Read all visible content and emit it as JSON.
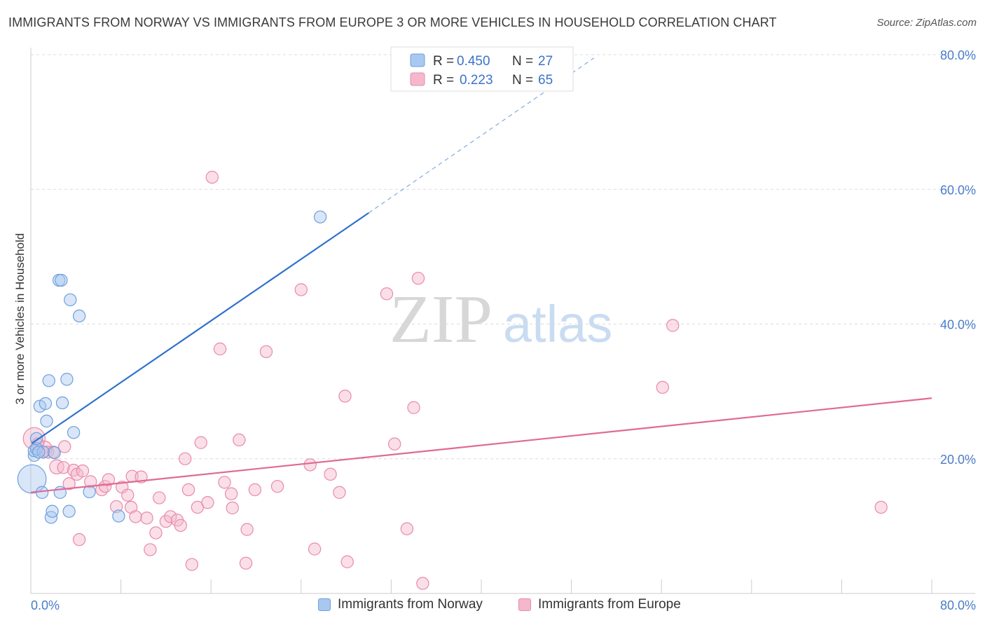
{
  "header": {
    "title": "IMMIGRANTS FROM NORWAY VS IMMIGRANTS FROM EUROPE 3 OR MORE VEHICLES IN HOUSEHOLD CORRELATION CHART",
    "source": "Source: ZipAtlas.com"
  },
  "watermark": {
    "zip": "ZIP",
    "atlas": "atlas"
  },
  "legend_top": {
    "rows": [
      {
        "r_label": "R =",
        "r_value": "0.450",
        "n_label": "N =",
        "n_value": "27"
      },
      {
        "r_label": "R =",
        "r_value": "0.223",
        "n_label": "N =",
        "n_value": "65"
      }
    ]
  },
  "legend_bottom": {
    "norway": "Immigrants from Norway",
    "europe": "Immigrants from Europe"
  },
  "colors": {
    "norway_fill": "#a9c8f0",
    "norway_stroke": "#6f9fde",
    "norway_line": "#2f72cc",
    "europe_fill": "#f5b8cb",
    "europe_stroke": "#e98aaa",
    "europe_line": "#e06a95",
    "tick_label": "#4a7cc9"
  },
  "chart_data": {
    "type": "scatter",
    "title": "IMMIGRANTS FROM NORWAY VS IMMIGRANTS FROM EUROPE 3 OR MORE VEHICLES IN HOUSEHOLD CORRELATION CHART",
    "xlabel": "",
    "ylabel": "3 or more Vehicles in Household",
    "xlim": [
      0,
      80
    ],
    "ylim": [
      0,
      80
    ],
    "x_tick_labels": [
      "0.0%",
      "80.0%"
    ],
    "y_ticks": [
      20,
      40,
      60,
      80
    ],
    "y_tick_labels": [
      "20.0%",
      "40.0%",
      "60.0%",
      "80.0%"
    ],
    "grid": true,
    "legend": "top-center",
    "series": [
      {
        "name": "Immigrants from Norway",
        "R": 0.45,
        "N": 27,
        "trend": {
          "x0": 0.1,
          "y0": 22.3,
          "x1": 30.0,
          "y1": 56.5,
          "dash_to_x": 50.0,
          "dash_to_y": 79.5
        },
        "points": [
          [
            0.1,
            17.0,
            26
          ],
          [
            0.3,
            20.5,
            11
          ],
          [
            0.3,
            21.2,
            11
          ],
          [
            0.5,
            21.5,
            11
          ],
          [
            0.5,
            23.0,
            11
          ],
          [
            0.8,
            27.8,
            11
          ],
          [
            1.0,
            15.0,
            11
          ],
          [
            1.1,
            21.0,
            11
          ],
          [
            1.3,
            28.2,
            11
          ],
          [
            1.4,
            25.6,
            11
          ],
          [
            1.6,
            31.6,
            11
          ],
          [
            1.8,
            11.3,
            11
          ],
          [
            1.9,
            12.2,
            11
          ],
          [
            2.1,
            20.9,
            11
          ],
          [
            2.5,
            46.5,
            11
          ],
          [
            2.6,
            15.0,
            11
          ],
          [
            2.8,
            28.3,
            11
          ],
          [
            2.7,
            46.5,
            11
          ],
          [
            3.2,
            31.8,
            11
          ],
          [
            3.4,
            12.2,
            11
          ],
          [
            3.5,
            43.6,
            11
          ],
          [
            3.8,
            23.9,
            11
          ],
          [
            4.3,
            41.2,
            11
          ],
          [
            5.2,
            15.1,
            11
          ],
          [
            7.8,
            11.5,
            11
          ],
          [
            25.7,
            55.9,
            11
          ],
          [
            0.7,
            21.0,
            11
          ]
        ]
      },
      {
        "name": "Immigrants from Europe",
        "R": 0.223,
        "N": 65,
        "trend": {
          "x0": 0.0,
          "y0": 15.0,
          "x1": 80.0,
          "y1": 29.0
        },
        "points": [
          [
            0.3,
            23.0,
            20
          ],
          [
            1.2,
            21.5,
            14
          ],
          [
            1.5,
            21.0,
            11
          ],
          [
            2.0,
            21.0,
            11
          ],
          [
            2.3,
            18.8,
            13
          ],
          [
            2.9,
            18.7,
            11
          ],
          [
            3.4,
            16.3,
            11
          ],
          [
            3.8,
            18.3,
            11
          ],
          [
            4.1,
            17.7,
            11
          ],
          [
            4.3,
            8.0,
            11
          ],
          [
            4.6,
            18.2,
            11
          ],
          [
            5.3,
            16.6,
            11
          ],
          [
            6.3,
            15.4,
            11
          ],
          [
            6.6,
            15.9,
            11
          ],
          [
            6.9,
            16.9,
            11
          ],
          [
            7.6,
            12.9,
            11
          ],
          [
            8.1,
            15.8,
            11
          ],
          [
            8.6,
            14.6,
            11
          ],
          [
            8.9,
            12.8,
            11
          ],
          [
            9.0,
            17.4,
            11
          ],
          [
            9.3,
            11.4,
            11
          ],
          [
            9.8,
            17.3,
            11
          ],
          [
            10.3,
            11.2,
            11
          ],
          [
            10.6,
            6.5,
            11
          ],
          [
            11.1,
            9.0,
            11
          ],
          [
            11.4,
            14.2,
            11
          ],
          [
            12.0,
            10.7,
            11
          ],
          [
            12.4,
            11.4,
            11
          ],
          [
            13.0,
            10.9,
            11
          ],
          [
            13.3,
            10.1,
            11
          ],
          [
            13.7,
            20.0,
            11
          ],
          [
            14.0,
            15.4,
            11
          ],
          [
            14.3,
            4.3,
            11
          ],
          [
            14.8,
            12.8,
            11
          ],
          [
            15.1,
            22.4,
            11
          ],
          [
            15.7,
            13.5,
            11
          ],
          [
            16.1,
            61.8,
            11
          ],
          [
            16.8,
            36.3,
            11
          ],
          [
            17.2,
            16.5,
            11
          ],
          [
            17.8,
            14.8,
            11
          ],
          [
            17.9,
            12.7,
            11
          ],
          [
            18.5,
            22.8,
            11
          ],
          [
            19.1,
            4.5,
            11
          ],
          [
            19.2,
            9.5,
            11
          ],
          [
            19.9,
            15.4,
            11
          ],
          [
            20.9,
            35.9,
            11
          ],
          [
            21.9,
            15.9,
            11
          ],
          [
            24.0,
            45.1,
            11
          ],
          [
            24.8,
            19.1,
            11
          ],
          [
            25.2,
            6.6,
            11
          ],
          [
            26.6,
            17.7,
            11
          ],
          [
            27.4,
            15.0,
            11
          ],
          [
            27.9,
            29.3,
            11
          ],
          [
            28.1,
            4.7,
            11
          ],
          [
            31.6,
            44.5,
            11
          ],
          [
            32.3,
            22.2,
            11
          ],
          [
            33.4,
            9.6,
            11
          ],
          [
            34.8,
            1.5,
            11
          ],
          [
            34.0,
            27.6,
            11
          ],
          [
            34.4,
            46.8,
            11
          ],
          [
            56.1,
            30.6,
            11
          ],
          [
            57.0,
            39.8,
            11
          ],
          [
            75.5,
            12.8,
            11
          ],
          [
            3.0,
            21.8,
            11
          ],
          [
            0.6,
            22.2,
            11
          ]
        ]
      }
    ]
  }
}
